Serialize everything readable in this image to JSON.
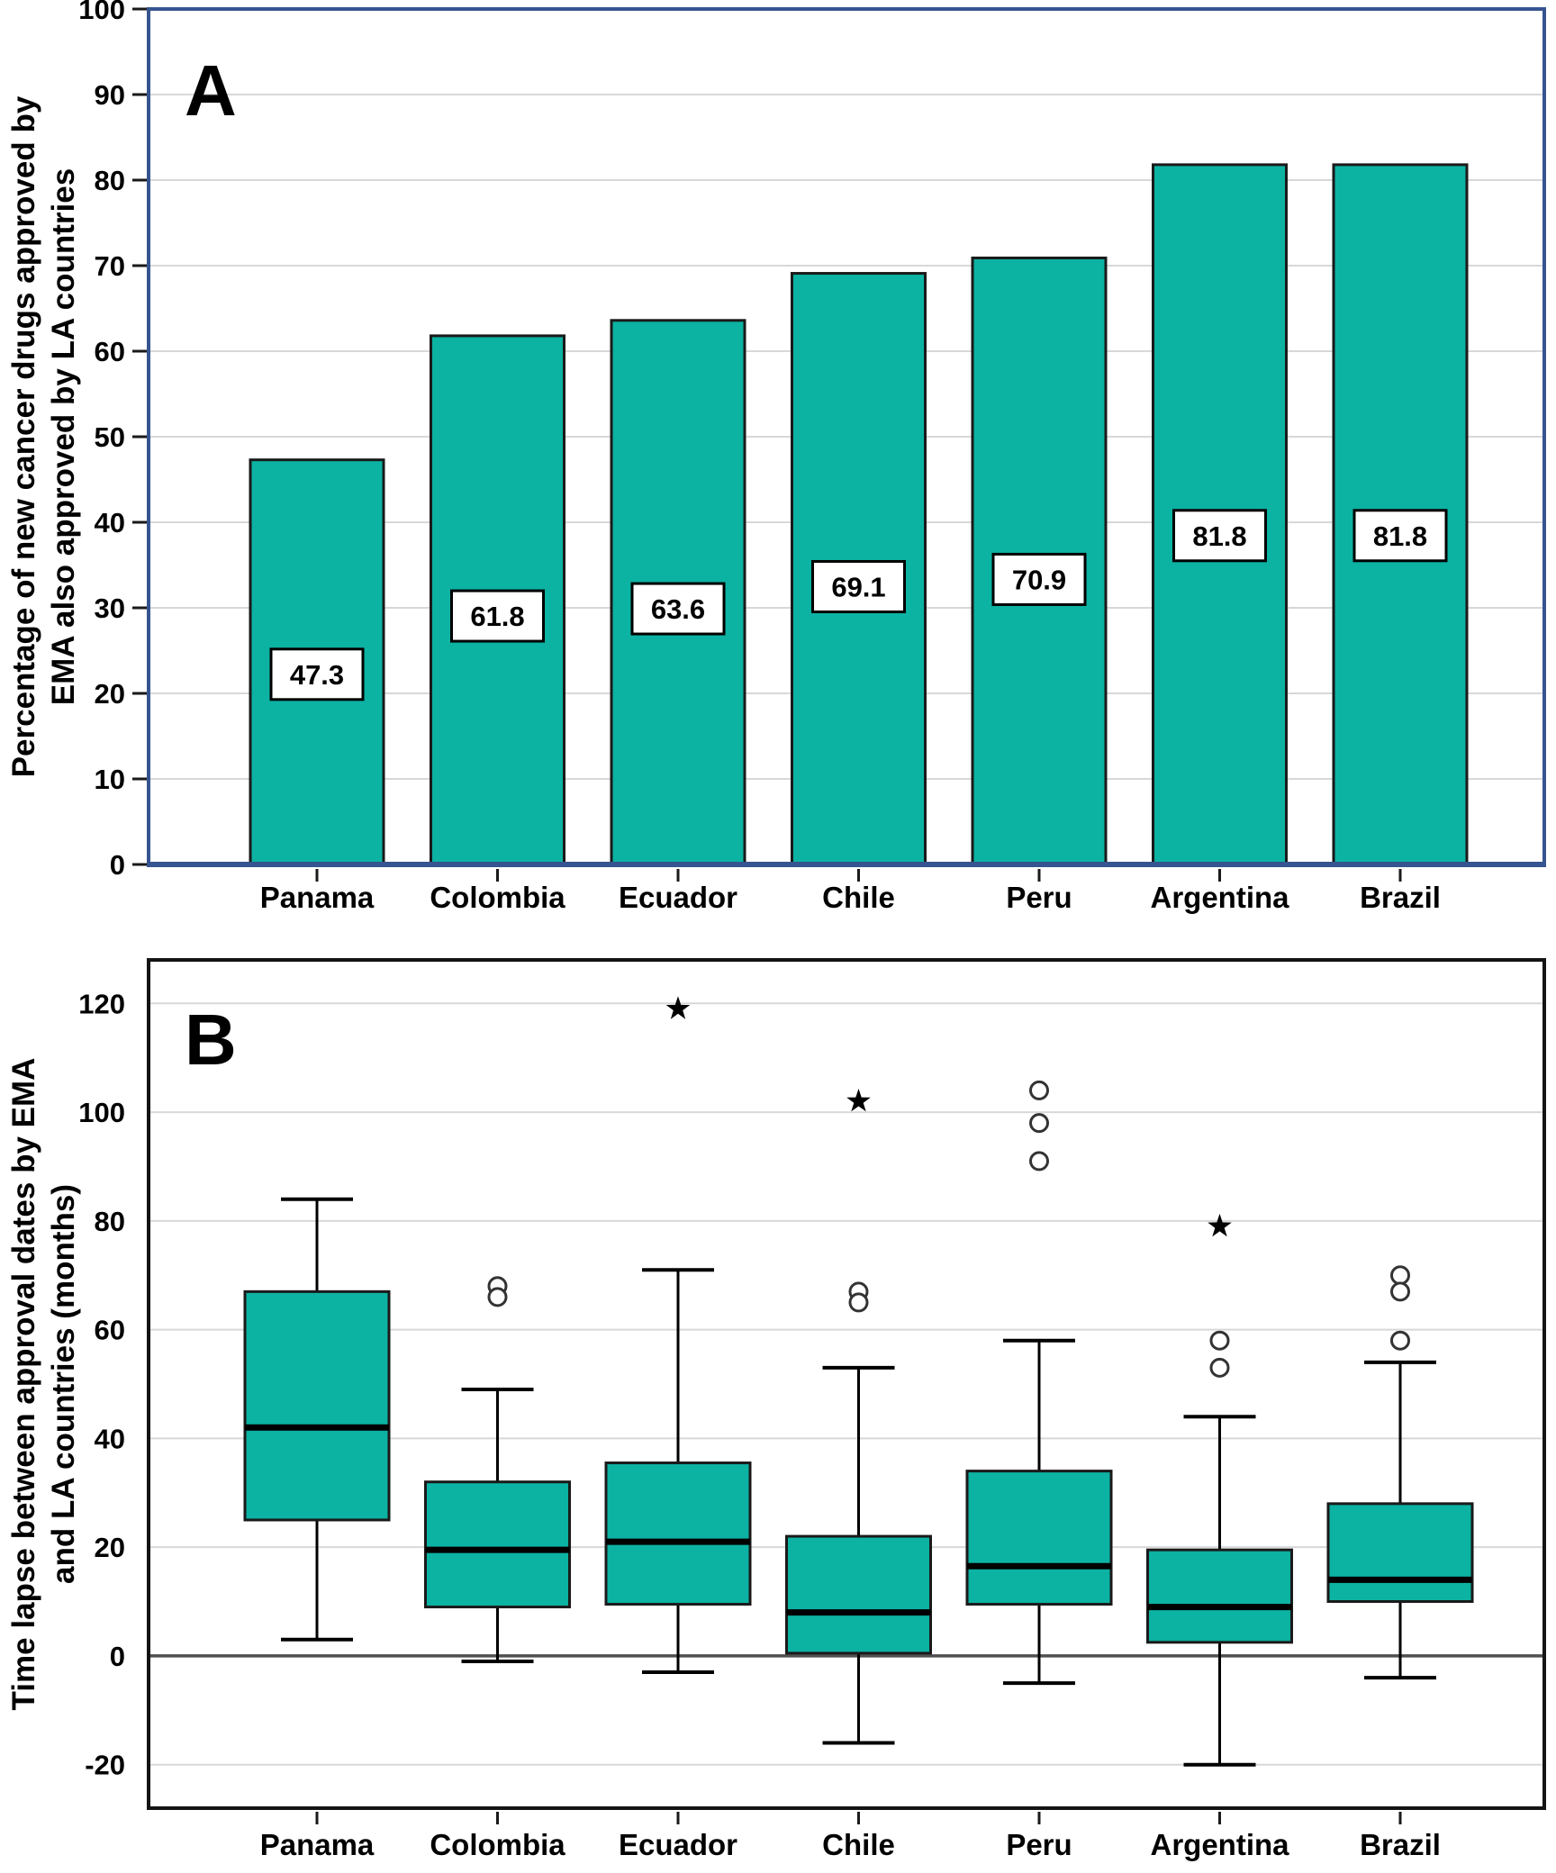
{
  "figure": {
    "panel_a_letter": "A",
    "panel_b_letter": "B",
    "panel_a_y_title_line1": "Percentage of new cancer drugs approved by",
    "panel_a_y_title_line2": "EMA also approved by LA countries",
    "panel_b_y_title_line1": "Time lapse between approval dates by EMA",
    "panel_b_y_title_line2": "and LA countries (months)"
  },
  "colors": {
    "teal_fill": "#0cb2a2",
    "grid": "#d8d8d8",
    "panel_a_border": "#36548f",
    "panel_b_border": "#141414",
    "zero_line": "#4f4f4f",
    "shape_stroke": "#1a1a1a",
    "median": "#000000",
    "text": "#000000",
    "label_box_bg": "#ffffff",
    "outlier_stroke": "#333333"
  },
  "chart_data": [
    {
      "type": "bar",
      "panel": "A",
      "title": "",
      "xlabel": "",
      "ylabel_lines": [
        "Percentage of new cancer drugs approved by",
        "EMA also approved by LA countries"
      ],
      "categories": [
        "Panama",
        "Colombia",
        "Ecuador",
        "Chile",
        "Peru",
        "Argentina",
        "Brazil"
      ],
      "values": [
        47.3,
        61.8,
        63.6,
        69.1,
        70.9,
        81.8,
        81.8
      ],
      "value_labels": [
        "47.3",
        "61.8",
        "63.6",
        "69.1",
        "70.9",
        "81.8",
        "81.8"
      ],
      "ylim": [
        0,
        100
      ],
      "yticks": [
        0,
        10,
        20,
        30,
        40,
        50,
        60,
        70,
        80,
        90,
        100
      ],
      "grid": true,
      "legend": "none"
    },
    {
      "type": "box",
      "panel": "B",
      "title": "",
      "xlabel": "",
      "ylabel_lines": [
        "Time lapse between approval dates by EMA",
        "and LA countries (months)"
      ],
      "categories": [
        "Panama",
        "Colombia",
        "Ecuador",
        "Chile",
        "Peru",
        "Argentina",
        "Brazil"
      ],
      "ylim": [
        -28,
        128
      ],
      "yticks": [
        -20,
        0,
        20,
        40,
        60,
        80,
        100,
        120
      ],
      "zero_reference_line": true,
      "grid": true,
      "legend": "none",
      "series": [
        {
          "name": "Panama",
          "whisker_low": 3,
          "q1": 25,
          "median": 42,
          "q3": 67,
          "whisker_high": 84,
          "outliers": [],
          "extremes": []
        },
        {
          "name": "Colombia",
          "whisker_low": -1,
          "q1": 9,
          "median": 19.5,
          "q3": 32,
          "whisker_high": 49,
          "outliers": [
            68,
            66
          ],
          "extremes": []
        },
        {
          "name": "Ecuador",
          "whisker_low": -3,
          "q1": 9.5,
          "median": 21,
          "q3": 35.5,
          "whisker_high": 71,
          "outliers": [],
          "extremes": [
            119
          ]
        },
        {
          "name": "Chile",
          "whisker_low": -16,
          "q1": 0.5,
          "median": 8,
          "q3": 22,
          "whisker_high": 53,
          "outliers": [
            67,
            65
          ],
          "extremes": [
            102
          ]
        },
        {
          "name": "Peru",
          "whisker_low": -5,
          "q1": 9.5,
          "median": 16.5,
          "q3": 34,
          "whisker_high": 58,
          "outliers": [
            104,
            98,
            91
          ],
          "extremes": []
        },
        {
          "name": "Argentina",
          "whisker_low": -20,
          "q1": 2.5,
          "median": 9,
          "q3": 19.5,
          "whisker_high": 44,
          "outliers": [
            58,
            53
          ],
          "extremes": [
            79
          ]
        },
        {
          "name": "Brazil",
          "whisker_low": -4,
          "q1": 10,
          "median": 14,
          "q3": 28,
          "whisker_high": 54,
          "outliers": [
            70,
            67,
            58
          ],
          "extremes": []
        }
      ]
    }
  ]
}
